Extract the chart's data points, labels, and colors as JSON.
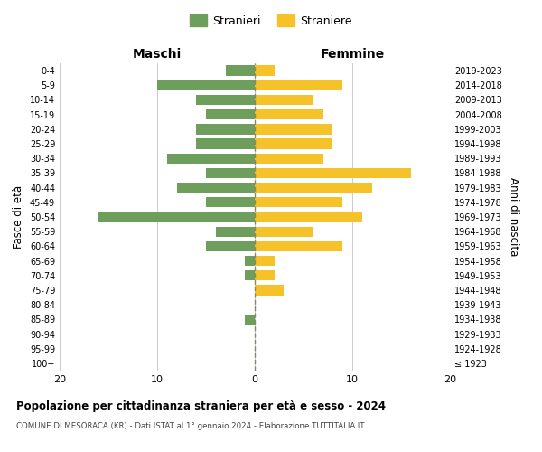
{
  "age_groups": [
    "100+",
    "95-99",
    "90-94",
    "85-89",
    "80-84",
    "75-79",
    "70-74",
    "65-69",
    "60-64",
    "55-59",
    "50-54",
    "45-49",
    "40-44",
    "35-39",
    "30-34",
    "25-29",
    "20-24",
    "15-19",
    "10-14",
    "5-9",
    "0-4"
  ],
  "birth_years": [
    "≤ 1923",
    "1924-1928",
    "1929-1933",
    "1934-1938",
    "1939-1943",
    "1944-1948",
    "1949-1953",
    "1954-1958",
    "1959-1963",
    "1964-1968",
    "1969-1973",
    "1974-1978",
    "1979-1983",
    "1984-1988",
    "1989-1993",
    "1994-1998",
    "1999-2003",
    "2004-2008",
    "2009-2013",
    "2014-2018",
    "2019-2023"
  ],
  "males": [
    0,
    0,
    0,
    1,
    0,
    0,
    1,
    1,
    5,
    4,
    16,
    5,
    8,
    5,
    9,
    6,
    6,
    5,
    6,
    10,
    3
  ],
  "females": [
    0,
    0,
    0,
    0,
    0,
    3,
    2,
    2,
    9,
    6,
    11,
    9,
    12,
    16,
    7,
    8,
    8,
    7,
    6,
    9,
    2
  ],
  "male_color": "#6d9e5b",
  "female_color": "#f5c229",
  "background_color": "#ffffff",
  "grid_color": "#cccccc",
  "title": "Popolazione per cittadinanza straniera per età e sesso - 2024",
  "subtitle": "COMUNE DI MESORACA (KR) - Dati ISTAT al 1° gennaio 2024 - Elaborazione TUTTITALIA.IT",
  "xlabel_left": "Maschi",
  "xlabel_right": "Femmine",
  "ylabel_left": "Fasce di età",
  "ylabel_right": "Anni di nascita",
  "legend_male": "Stranieri",
  "legend_female": "Straniere",
  "xlim": 20,
  "center_line_color": "#888866"
}
